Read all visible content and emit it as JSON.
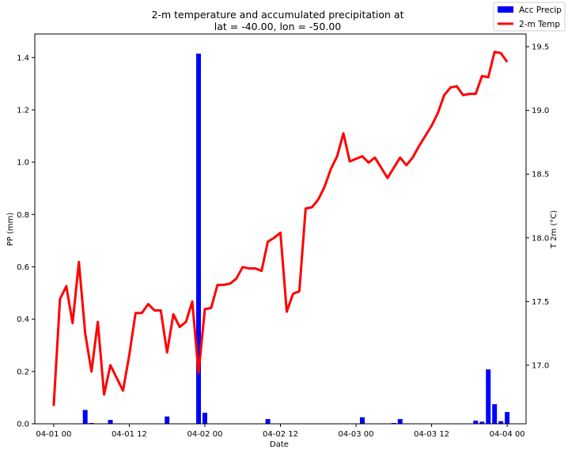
{
  "chart_data": {
    "type": "bar+line",
    "title_line1": "2-m temperature and accumulated precipitation at",
    "title_line2": "lat = -40.00, lon = -50.00",
    "xlabel": "Date",
    "ylabel_left": "PP (mm)",
    "ylabel_right": "T 2m (°C)",
    "x_unit": "hours since 04-01 00",
    "xlim": [
      -3,
      75
    ],
    "ylim_left": [
      0,
      1.49
    ],
    "ylim_right": [
      16.54,
      19.6
    ],
    "x_ticks": [
      {
        "x": 0,
        "label": "04-01 00"
      },
      {
        "x": 12,
        "label": "04-01 12"
      },
      {
        "x": 24,
        "label": "04-02 00"
      },
      {
        "x": 36,
        "label": "04-02 12"
      },
      {
        "x": 48,
        "label": "04-03 00"
      },
      {
        "x": 60,
        "label": "04-03 12"
      },
      {
        "x": 72,
        "label": "04-04 00"
      }
    ],
    "y_ticks_left": [
      "0.0",
      "0.2",
      "0.4",
      "0.6",
      "0.8",
      "1.0",
      "1.2",
      "1.4"
    ],
    "y_ticks_right": [
      "17.0",
      "17.5",
      "18.0",
      "18.5",
      "19.0",
      "19.5"
    ],
    "grid": false,
    "legend_position": "top-right",
    "legend": [
      {
        "label": "Acc Precip",
        "kind": "bar",
        "color": "#0000ff"
      },
      {
        "label": "2-m Temp",
        "kind": "line",
        "color": "#ff0000"
      }
    ],
    "series": [
      {
        "name": "Acc Precip",
        "type": "bar",
        "axis": "left",
        "color": "#0000ff",
        "x": [
          5,
          6,
          9,
          18,
          23,
          24,
          34,
          49,
          54,
          55,
          67,
          68,
          69,
          70,
          71,
          72
        ],
        "values": [
          0.053,
          0.003,
          0.015,
          0.028,
          1.415,
          0.042,
          0.018,
          0.025,
          0.003,
          0.018,
          0.012,
          0.008,
          0.208,
          0.075,
          0.01,
          0.045
        ]
      },
      {
        "name": "2-m Temp",
        "type": "line",
        "axis": "right",
        "color": "#ff0000",
        "x": [
          0,
          1,
          2,
          3,
          4,
          5,
          6,
          7,
          8,
          9,
          10,
          11,
          12,
          13,
          14,
          15,
          16,
          17,
          18,
          19,
          20,
          21,
          22,
          23,
          24,
          25,
          26,
          27,
          28,
          29,
          30,
          31,
          32,
          33,
          34,
          35,
          36,
          37,
          38,
          39,
          40,
          41,
          42,
          43,
          44,
          45,
          46,
          47,
          48,
          49,
          50,
          51,
          52,
          53,
          54,
          55,
          56,
          57,
          58,
          59,
          60,
          61,
          62,
          63,
          64,
          65,
          66,
          67,
          68,
          69,
          70,
          71,
          72
        ],
        "values": [
          16.68,
          17.52,
          17.62,
          17.33,
          17.81,
          17.25,
          16.95,
          17.34,
          16.77,
          17.0,
          16.9,
          16.8,
          17.08,
          17.41,
          17.41,
          17.48,
          17.43,
          17.43,
          17.1,
          17.4,
          17.3,
          17.34,
          17.5,
          16.94,
          17.44,
          17.45,
          17.63,
          17.63,
          17.64,
          17.68,
          17.77,
          17.76,
          17.76,
          17.74,
          17.97,
          18.0,
          18.04,
          17.42,
          17.56,
          17.58,
          18.23,
          18.24,
          18.3,
          18.4,
          18.54,
          18.64,
          18.82,
          18.6,
          18.62,
          18.64,
          18.59,
          18.63,
          18.55,
          18.47,
          18.55,
          18.63,
          18.57,
          18.63,
          18.72,
          18.8,
          18.88,
          18.98,
          19.12,
          19.18,
          19.19,
          19.12,
          19.13,
          19.13,
          19.27,
          19.26,
          19.46,
          19.45,
          19.38
        ]
      }
    ]
  }
}
